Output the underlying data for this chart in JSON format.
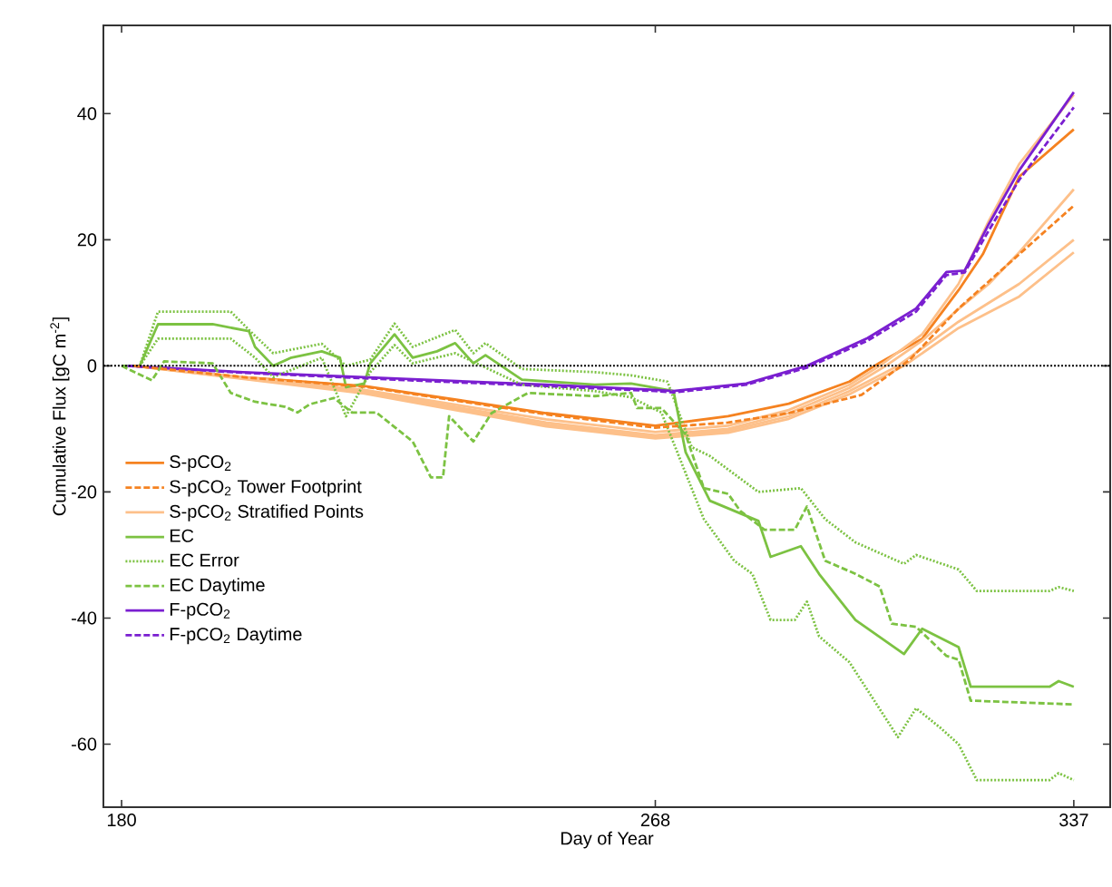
{
  "chart_data": {
    "type": "line",
    "xlabel": "Day of Year",
    "ylabel": "Cumulative Flux [gC m$^{-2}$]",
    "xlim": [
      177,
      343
    ],
    "ylim": [
      -70,
      54
    ],
    "xticks": [
      180,
      268,
      337
    ],
    "yticks": [
      -60,
      -40,
      -20,
      0,
      20,
      40
    ],
    "legend": "left",
    "ref_lines": [
      {
        "axis": "y",
        "value": 0,
        "color": "#000000",
        "line_style": "dotted"
      }
    ],
    "series": [
      {
        "name": "S-pCO$_{2}$",
        "color": "#f58220",
        "line_style": "solid",
        "x": [
          182,
          200,
          220,
          250,
          268,
          280,
          290,
          300,
          305,
          312,
          318,
          322,
          328,
          337
        ],
        "values": [
          0,
          -1.8,
          -3.2,
          -7.5,
          -9.5,
          -8,
          -6,
          -2.5,
          0.5,
          4.3,
          12,
          17.7,
          30,
          37.5
        ]
      },
      {
        "name": "S-pCO$_{2}$ Tower Footprint",
        "color": "#f58220",
        "line_style": "dashed",
        "x": [
          182,
          200,
          220,
          250,
          268,
          280,
          290,
          302,
          310,
          318,
          328,
          337
        ],
        "values": [
          0,
          -1.8,
          -3.3,
          -7.7,
          -9.8,
          -9,
          -7.5,
          -4.6,
          1,
          9.1,
          17.7,
          25.4
        ]
      },
      {
        "name": "S-pCO$_{2}$ Stratified Points",
        "color": "#fdc08a",
        "line_style": "solid",
        "x": [
          182,
          220,
          250,
          268,
          280,
          290,
          300,
          305,
          312,
          318,
          323,
          328,
          337
        ],
        "values": [
          0,
          -3.8,
          -8.5,
          -10.5,
          -9.5,
          -7,
          -3,
          0,
          5,
          13,
          23,
          32,
          43
        ]
      },
      {
        "color": "#fdc08a",
        "line_style": "solid",
        "x": [
          182,
          220,
          250,
          268,
          280,
          290,
          300,
          306,
          312,
          318,
          323,
          328,
          337
        ],
        "values": [
          0,
          -4,
          -9,
          -11,
          -10,
          -7.5,
          -3.5,
          0,
          4,
          9,
          13,
          18,
          28
        ]
      },
      {
        "color": "#fdc08a",
        "line_style": "solid",
        "x": [
          182,
          220,
          250,
          268,
          280,
          290,
          300,
          308,
          318,
          328,
          337
        ],
        "values": [
          0,
          -4.2,
          -9.3,
          -11.3,
          -10.3,
          -8,
          -4,
          0,
          7,
          13,
          20
        ]
      },
      {
        "color": "#fdc08a",
        "line_style": "solid",
        "x": [
          182,
          220,
          250,
          268,
          280,
          290,
          300,
          309,
          318,
          328,
          337
        ],
        "values": [
          0,
          -4.4,
          -9.6,
          -11.5,
          -10.6,
          -8.4,
          -4.5,
          0,
          6,
          11,
          18
        ]
      },
      {
        "name": "EC",
        "color": "#7cc242",
        "line_style": "solid",
        "x": [
          180,
          183,
          186,
          195,
          201,
          202,
          205,
          208,
          213,
          216,
          217,
          220,
          221,
          225,
          228,
          232,
          235,
          238,
          240,
          246,
          258,
          264,
          271,
          273,
          277,
          285,
          287,
          292,
          295,
          301,
          309,
          312,
          318,
          320,
          333,
          334.5,
          337
        ],
        "values": [
          0,
          0,
          6.6,
          6.6,
          5.5,
          3,
          0,
          1.3,
          2.3,
          1.3,
          -3.4,
          -2.8,
          0.4,
          5,
          1.3,
          2.3,
          3.6,
          0.4,
          1.7,
          -2.2,
          -3,
          -2.8,
          -4,
          -13.7,
          -21.4,
          -24.6,
          -30.3,
          -28.6,
          -33,
          -40.3,
          -45.7,
          -41.7,
          -44.6,
          -50.9,
          -50.9,
          -50,
          -50.9
        ]
      },
      {
        "name": "EC Error",
        "color": "#7cc242",
        "line_style": "dotted",
        "x": [
          180,
          183,
          186,
          198,
          201,
          205,
          213,
          217,
          221,
          225,
          228,
          235,
          238,
          240,
          246,
          258,
          264,
          270,
          274,
          277,
          285,
          292,
          296,
          301,
          309,
          311,
          318,
          321,
          333,
          334.5,
          337
        ],
        "values": [
          0,
          0,
          8.6,
          8.6,
          5.7,
          2,
          3.5,
          0,
          1,
          6.7,
          3,
          5.7,
          2,
          3.6,
          -0.5,
          -1,
          -1.5,
          -2.5,
          -12.9,
          -14.3,
          -20,
          -19.4,
          -24.3,
          -28,
          -31.4,
          -30,
          -32.3,
          -35.7,
          -35.7,
          -35.1,
          -35.7
        ]
      },
      {
        "color": "#7cc242",
        "line_style": "dotted",
        "x": [
          180,
          183,
          186,
          198,
          202,
          205,
          213,
          217,
          221,
          225,
          228,
          235,
          246,
          258,
          264,
          269,
          272,
          276,
          281,
          284,
          287,
          291,
          293,
          295,
          300,
          308,
          311,
          315,
          318,
          321,
          333,
          334.5,
          337
        ],
        "values": [
          0,
          0,
          4.3,
          4.3,
          1.3,
          -1.8,
          1.3,
          -8,
          -1,
          3.3,
          0.4,
          2,
          -3,
          -4,
          -5,
          -7.4,
          -14.6,
          -24.3,
          -30.9,
          -33,
          -40.3,
          -40.3,
          -37.4,
          -42.9,
          -47,
          -58.9,
          -54.3,
          -57.4,
          -60,
          -65.7,
          -65.7,
          -64.6,
          -65.7
        ]
      },
      {
        "name": "EC Daytime",
        "color": "#7cc242",
        "line_style": "dashed",
        "x": [
          180,
          183,
          185,
          187,
          195,
          198,
          202,
          207,
          209,
          211,
          215,
          218,
          222,
          228,
          231,
          233,
          234,
          238,
          241,
          247,
          258,
          264,
          265,
          269,
          273,
          276,
          280,
          282,
          286,
          291,
          293,
          296,
          301,
          305,
          307,
          311,
          316,
          318,
          320,
          337
        ],
        "values": [
          0,
          -1.4,
          -2.3,
          0.7,
          0.4,
          -4.3,
          -5.7,
          -6.5,
          -7.4,
          -6.1,
          -5.1,
          -7.4,
          -7.4,
          -12,
          -17.7,
          -17.7,
          -8,
          -12,
          -7.5,
          -4.3,
          -4.8,
          -4.3,
          -6.7,
          -6.7,
          -10.9,
          -19.4,
          -20.3,
          -23,
          -26,
          -26,
          -22.3,
          -30.9,
          -33,
          -35,
          -40.9,
          -41.4,
          -46,
          -46.6,
          -53.1,
          -53.7
        ]
      },
      {
        "name": "F-pCO$_{2}$",
        "color": "#7a1fd0",
        "line_style": "solid",
        "x": [
          181,
          200,
          230,
          250,
          268,
          271,
          283,
          293,
          303,
          311,
          316,
          319,
          323,
          328,
          337
        ],
        "values": [
          0,
          -1,
          -2.2,
          -3,
          -3.8,
          -4,
          -2.8,
          0,
          4.4,
          9.1,
          14.9,
          15.1,
          22.5,
          31,
          43.4
        ]
      },
      {
        "name": "F-pCO$_{2}$ Daytime",
        "color": "#7a1fd0",
        "line_style": "dashed",
        "x": [
          181,
          200,
          230,
          250,
          268,
          271,
          283,
          293,
          303,
          311,
          316,
          319,
          323,
          328,
          337
        ],
        "values": [
          0,
          -1.1,
          -2.4,
          -3.2,
          -4,
          -4.2,
          -3,
          -0.3,
          4,
          8.6,
          14.4,
          14.8,
          21.5,
          29.5,
          41
        ]
      }
    ]
  }
}
